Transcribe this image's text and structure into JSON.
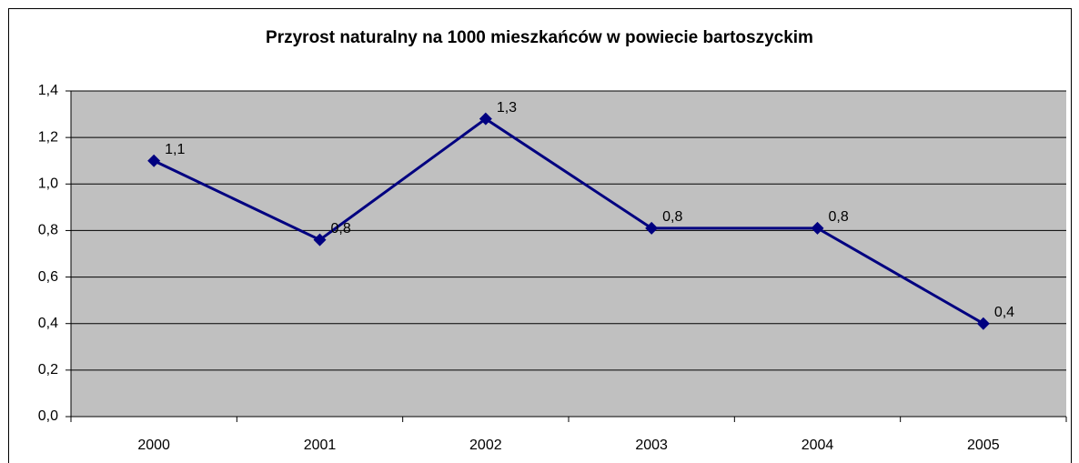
{
  "chart_data": {
    "type": "line",
    "title": "Przyrost naturalny na 1000 mieszkańców w powiecie bartoszyckim",
    "categories": [
      "2000",
      "2001",
      "2002",
      "2003",
      "2004",
      "2005"
    ],
    "values": [
      1.1,
      0.76,
      1.28,
      0.81,
      0.81,
      0.4
    ],
    "value_labels": [
      "1,1",
      "0,8",
      "1,3",
      "0,8",
      "0,8",
      "0,4"
    ],
    "color": "#000080",
    "ylim": [
      0,
      1.4
    ],
    "yticks": [
      {
        "value": 0,
        "label": "0,0"
      },
      {
        "value": 0.2,
        "label": "0,2"
      },
      {
        "value": 0.4,
        "label": "0,4"
      },
      {
        "value": 0.6,
        "label": "0,6"
      },
      {
        "value": 0.8,
        "label": "0,8"
      },
      {
        "value": 1.0,
        "label": "1,0"
      },
      {
        "value": 1.2,
        "label": "1,2"
      },
      {
        "value": 1.4,
        "label": "1,4"
      }
    ],
    "grid": true
  }
}
